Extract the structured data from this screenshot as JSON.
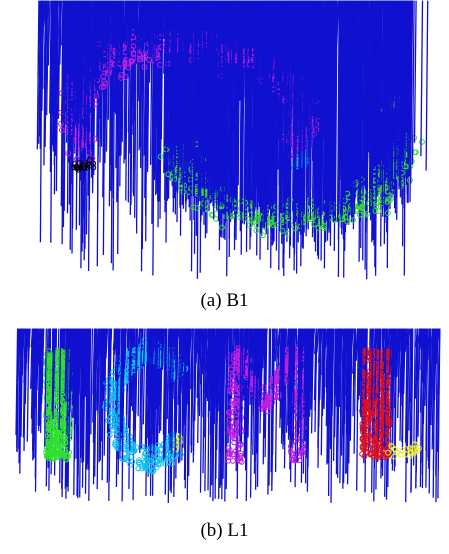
{
  "captions": {
    "a": "(a) B1",
    "b": "(b) L1"
  },
  "colors": {
    "noise": "#1010d0",
    "magenta": "#c020e0",
    "green": "#30e030",
    "cyan": "#10c0f0",
    "black": "#000000",
    "yellow": "#f0f020",
    "red": "#e01020"
  },
  "chart_data": [
    {
      "type": "scatter",
      "title": "",
      "panel": "a",
      "grid": false,
      "legend": "none",
      "xlim": [
        0,
        1
      ],
      "ylim": [
        0,
        1
      ],
      "point_counts": {
        "noise": 1400,
        "magenta": 420,
        "green": 340,
        "cyan": 30,
        "black": 20,
        "yellow": 14
      },
      "series": [
        {
          "color": "noise",
          "shape": "whole image, uniform + band halo"
        },
        {
          "color": "magenta",
          "shape": "upper arc of S-band"
        },
        {
          "color": "green",
          "shape": "lower arc of S-band"
        },
        {
          "color": "cyan",
          "shape": "small clusters inside bands"
        },
        {
          "color": "black",
          "shape": "small cluster at left end"
        },
        {
          "color": "yellow",
          "shape": "small cluster at right tip"
        }
      ]
    },
    {
      "type": "scatter",
      "title": "",
      "panel": "b",
      "grid": false,
      "legend": "none",
      "xlim": [
        0,
        1
      ],
      "ylim": [
        0,
        1
      ],
      "point_counts": {
        "noise": 700,
        "green": 420,
        "cyan": 380,
        "magenta": 420,
        "red": 360,
        "yellow": 30
      },
      "series": [
        {
          "color": "green",
          "shape": "letter I"
        },
        {
          "color": "cyan",
          "shape": "letter C"
        },
        {
          "color": "magenta",
          "shape": "letter M"
        },
        {
          "color": "red",
          "shape": "letter L vertical stroke"
        },
        {
          "color": "yellow",
          "shape": "small clusters (C tip, L foot)"
        },
        {
          "color": "noise",
          "shape": "scattered noise around letters"
        }
      ]
    }
  ]
}
